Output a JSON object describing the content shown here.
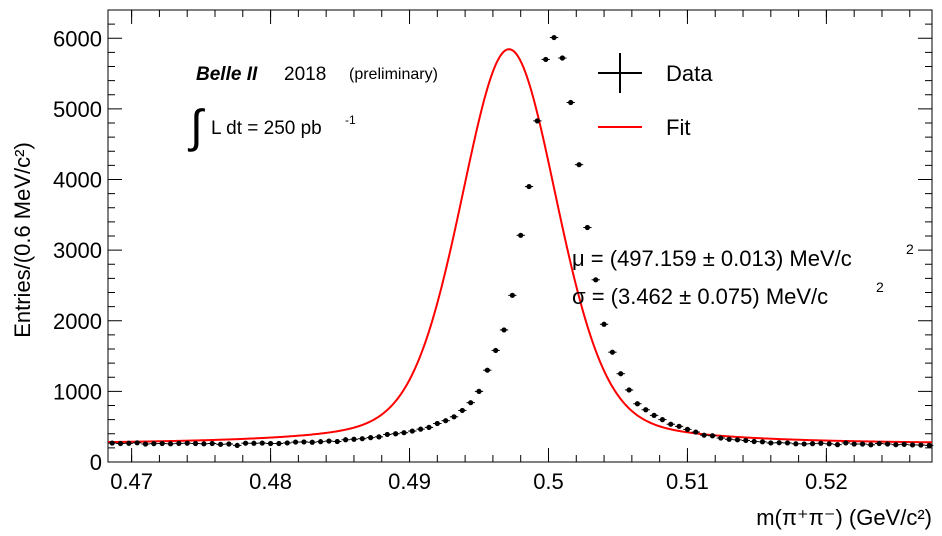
{
  "chart_data": {
    "type": "scatter",
    "title": "",
    "xlabel": "m(π⁺π⁻) (GeV/c²)",
    "ylabel": "Entries/(0.6 MeV/c²)",
    "xlim": [
      0.4683,
      0.5276
    ],
    "ylim": [
      0,
      6400
    ],
    "x_ticks": [
      0.47,
      0.48,
      0.49,
      0.5,
      0.51,
      0.52
    ],
    "x_tick_labels": [
      "0.47",
      "0.48",
      "0.49",
      "0.5",
      "0.51",
      "0.52"
    ],
    "y_ticks": [
      0,
      1000,
      2000,
      3000,
      4000,
      5000,
      6000
    ],
    "y_tick_labels": [
      "0",
      "1000",
      "2000",
      "3000",
      "4000",
      "5000",
      "6000"
    ],
    "grid": false,
    "experiment": "Belle II",
    "year": "2018",
    "status": "(preliminary)",
    "luminosity": {
      "integral_symbol": "∫",
      "text": "L dt = 250 pb",
      "superscript": "-1"
    },
    "legend": {
      "position": "top-right",
      "entries": [
        {
          "name": "Data",
          "style": "marker-errorbar",
          "color": "#000000"
        },
        {
          "name": "Fit",
          "style": "line",
          "color": "#ff0000"
        }
      ]
    },
    "fit_results": [
      {
        "text": "μ = (497.159 ± 0.013) MeV/c",
        "superscript": "2"
      },
      {
        "text": "σ = (3.462 ± 0.075) MeV/c",
        "superscript": "2"
      }
    ],
    "bin_width": 0.0006,
    "fit_params": {
      "mu": 0.497159,
      "sigma": 0.003462,
      "peak": 5600,
      "background": 245
    },
    "series": [
      {
        "name": "Data",
        "color": "#000000",
        "x": [
          0.4686,
          0.4692,
          0.4698,
          0.4704,
          0.471,
          0.4716,
          0.4722,
          0.4728,
          0.4734,
          0.474,
          0.4746,
          0.4752,
          0.4758,
          0.4764,
          0.477,
          0.4776,
          0.4782,
          0.4788,
          0.4794,
          0.48,
          0.4806,
          0.4812,
          0.4818,
          0.4824,
          0.483,
          0.4836,
          0.4842,
          0.4848,
          0.4854,
          0.486,
          0.4866,
          0.4872,
          0.4878,
          0.4884,
          0.489,
          0.4896,
          0.4902,
          0.4908,
          0.4914,
          0.492,
          0.4926,
          0.4932,
          0.4938,
          0.4944,
          0.495,
          0.4956,
          0.4962,
          0.4968,
          0.4974,
          0.498,
          0.4986,
          0.4992,
          0.4998,
          0.5004,
          0.501,
          0.5016,
          0.5022,
          0.5028,
          0.5034,
          0.504,
          0.5046,
          0.5052,
          0.5058,
          0.5064,
          0.507,
          0.5076,
          0.5082,
          0.5088,
          0.5094,
          0.51,
          0.5106,
          0.5112,
          0.5118,
          0.5124,
          0.513,
          0.5136,
          0.5142,
          0.5148,
          0.5154,
          0.516,
          0.5166,
          0.5172,
          0.5178,
          0.5184,
          0.519,
          0.5196,
          0.5202,
          0.5208,
          0.5214,
          0.522,
          0.5226,
          0.5232,
          0.5238,
          0.5244,
          0.525,
          0.5256,
          0.5262,
          0.5268,
          0.5274
        ],
        "y": [
          268,
          262,
          265,
          272,
          255,
          260,
          262,
          258,
          264,
          266,
          262,
          258,
          262,
          250,
          255,
          235,
          266,
          265,
          268,
          262,
          262,
          270,
          282,
          284,
          280,
          288,
          296,
          290,
          315,
          322,
          330,
          345,
          356,
          390,
          400,
          415,
          438,
          465,
          490,
          545,
          585,
          640,
          730,
          840,
          1000,
          1300,
          1580,
          1870,
          2360,
          3210,
          3900,
          4830,
          5700,
          6010,
          5720,
          5090,
          4210,
          3320,
          2580,
          1950,
          1555,
          1250,
          1020,
          825,
          740,
          660,
          600,
          535,
          505,
          462,
          424,
          380,
          372,
          339,
          322,
          314,
          305,
          290,
          286,
          270,
          273,
          270,
          258,
          256,
          260,
          265,
          258,
          246,
          270,
          255,
          255,
          244,
          262,
          255,
          245,
          250,
          242,
          240,
          235
        ],
        "y_err": [
          14,
          14,
          14,
          14,
          14,
          14,
          14,
          14,
          14,
          14,
          14,
          14,
          14,
          14,
          14,
          14,
          14,
          14,
          14,
          14,
          14,
          14,
          14,
          14,
          14,
          14,
          14,
          14,
          14,
          14,
          14,
          14,
          14,
          14,
          14,
          14,
          14,
          14,
          14,
          14,
          14,
          14,
          14,
          14,
          14,
          14,
          14,
          14,
          14,
          14,
          14,
          14,
          14,
          14,
          14,
          14,
          14,
          14,
          14,
          14,
          14,
          14,
          14,
          14,
          14,
          14,
          14,
          14,
          14,
          14,
          14,
          14,
          14,
          14,
          14,
          14,
          14,
          14,
          14,
          14,
          14,
          14,
          14,
          14,
          14,
          14,
          14,
          14,
          14,
          14,
          14,
          14,
          14,
          14,
          14,
          14,
          14,
          14,
          14
        ]
      }
    ]
  }
}
